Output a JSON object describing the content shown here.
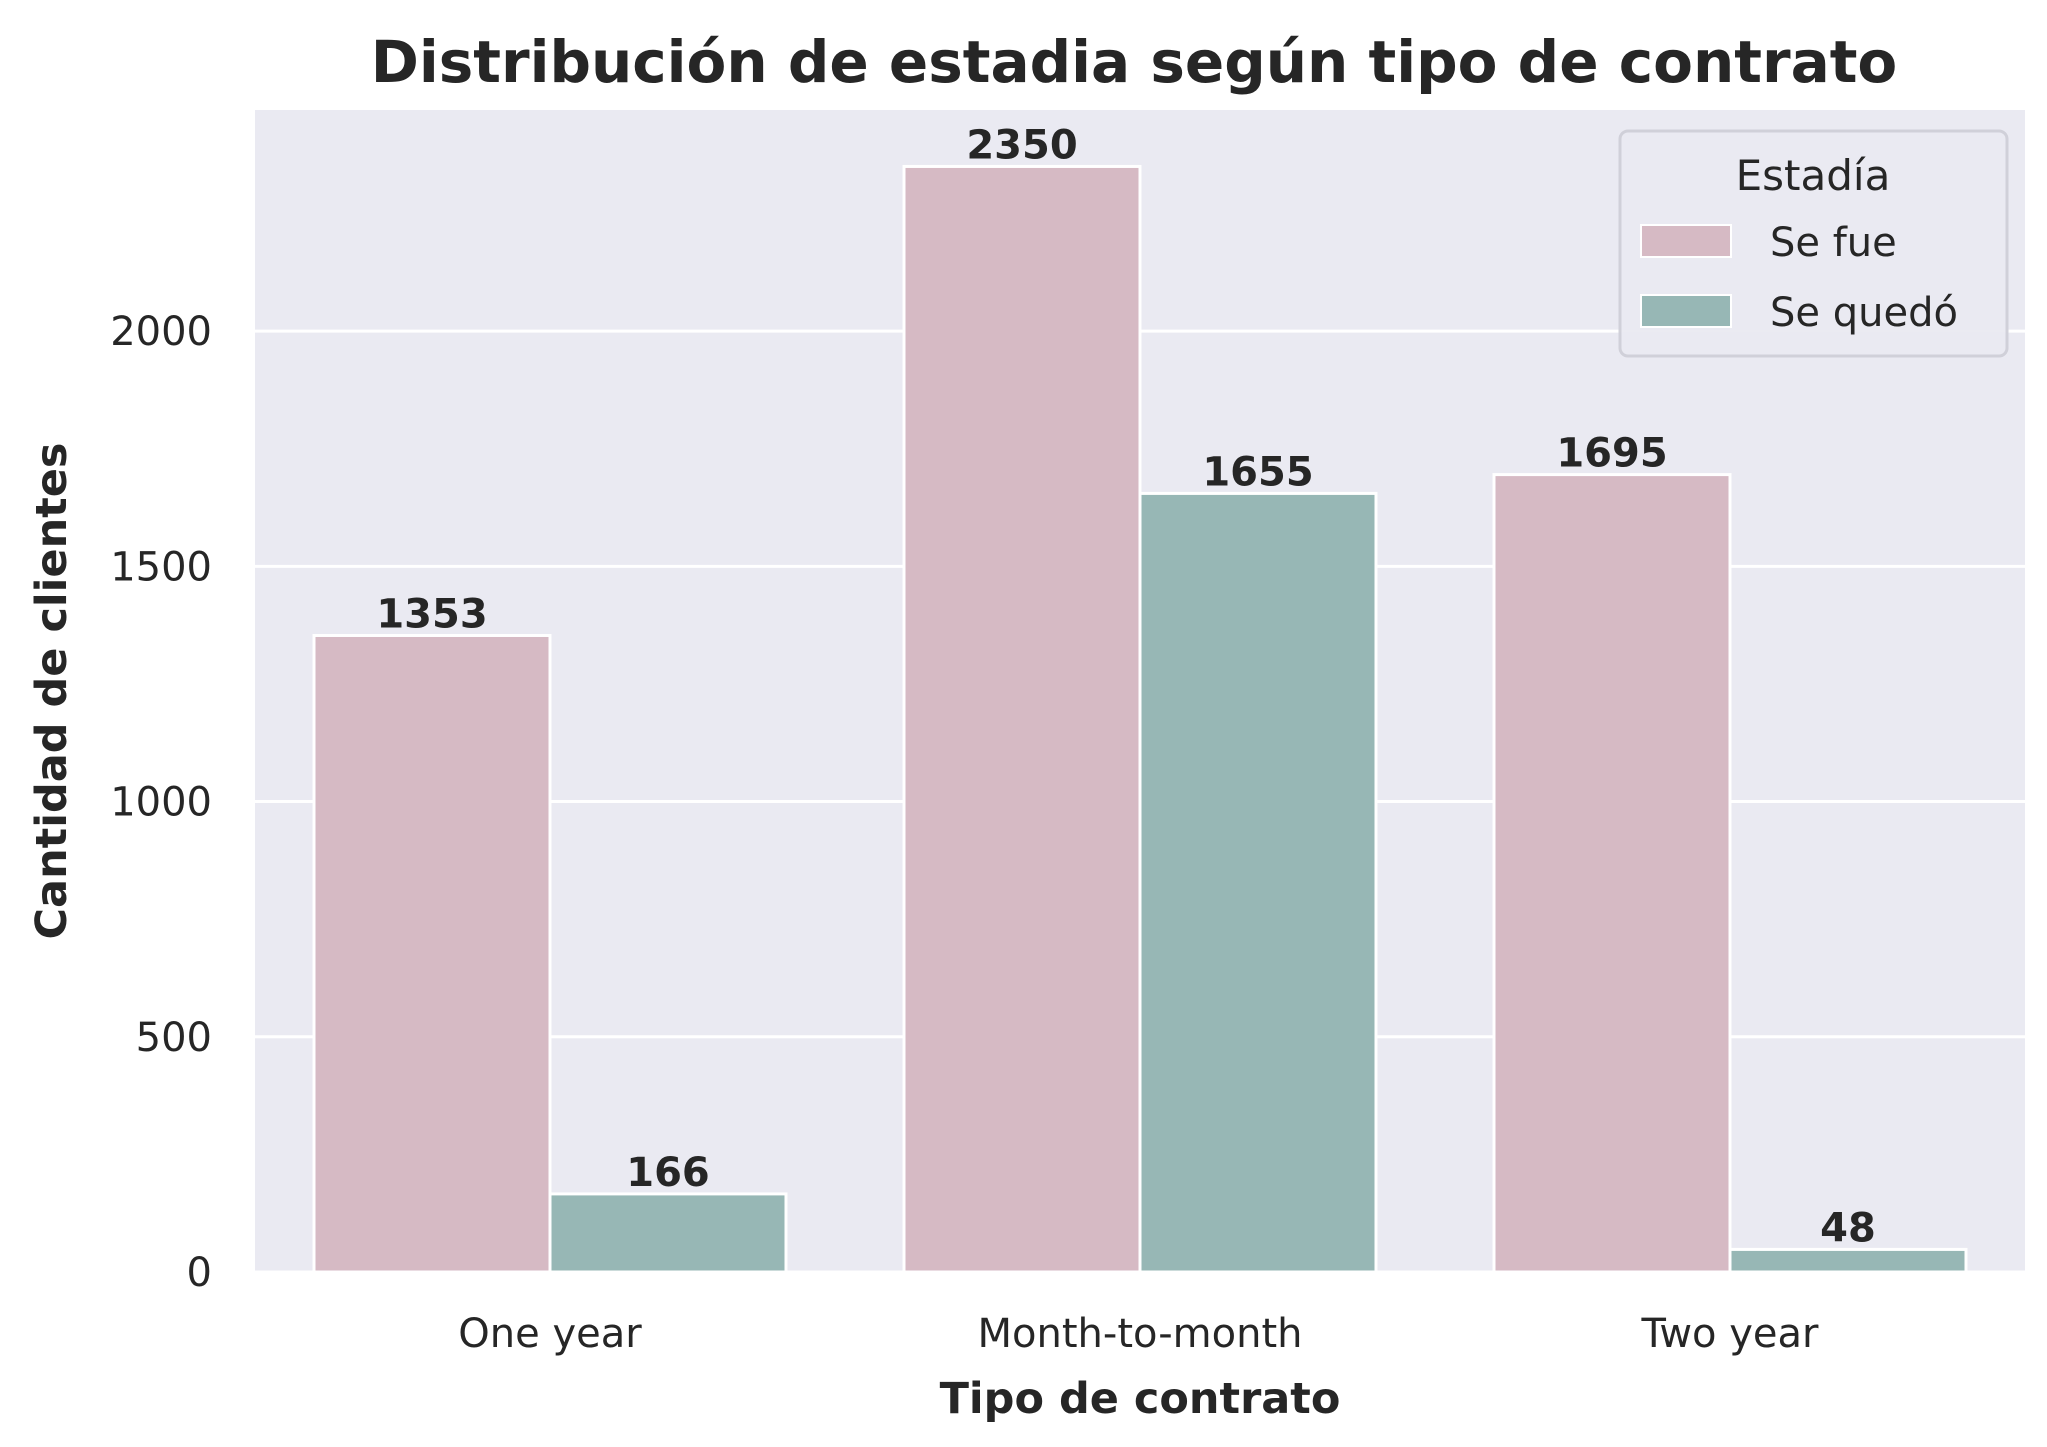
{
  "chart_data": {
    "type": "bar",
    "title": "Distribución de estadia según tipo de contrato",
    "xlabel": "Tipo de contrato",
    "ylabel": "Cantidad de clientes",
    "categories": [
      "One year",
      "Month-to-month",
      "Two year"
    ],
    "series": [
      {
        "name": "Se fue",
        "values": [
          1353,
          2350,
          1695
        ],
        "color": "#d6bac4"
      },
      {
        "name": "Se quedó",
        "values": [
          166,
          1655,
          48
        ],
        "color": "#97b7b5"
      }
    ],
    "ylim": [
      0,
      2470
    ],
    "yticks": [
      0,
      500,
      1000,
      1500,
      2000
    ],
    "grid": true,
    "legend": {
      "title": "Estadía",
      "position": "top-right"
    },
    "colors": {
      "plot_background": "#eaeaf2",
      "grid": "#ffffff",
      "text": "#262626"
    }
  }
}
